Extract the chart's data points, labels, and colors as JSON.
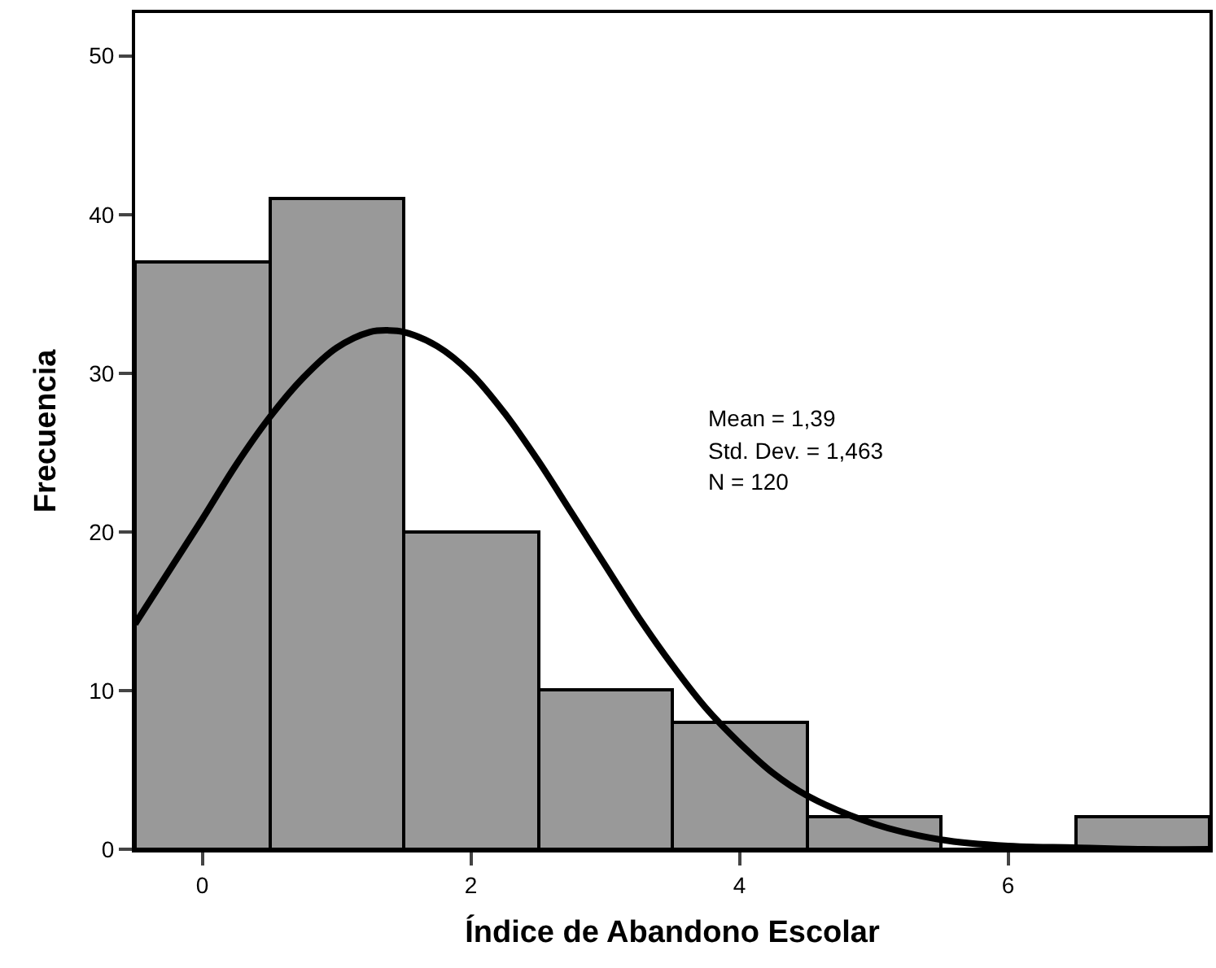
{
  "chart_data": {
    "type": "histogram",
    "xlabel": "Índice de Abandono Escolar",
    "ylabel": "Frecuencia",
    "bins": [
      -0.5,
      0.5,
      1.5,
      2.5,
      3.5,
      4.5,
      5.5,
      6.5,
      7.5
    ],
    "values": [
      37,
      41,
      20,
      10,
      8,
      2,
      0,
      2
    ],
    "color": "#999999",
    "series": [
      {
        "type": "line",
        "color": "#000000",
        "x": [
          -0.5,
          0,
          0.25,
          0.5,
          0.75,
          1,
          1.25,
          1.39,
          1.5,
          1.75,
          2,
          2.25,
          2.5,
          2.75,
          3,
          3.25,
          3.5,
          3.75,
          4,
          4.25,
          4.5,
          5,
          5.5,
          6,
          6.5,
          7,
          7.5
        ],
        "values": [
          14.2,
          20.8,
          24.2,
          27.2,
          29.7,
          31.6,
          32.6,
          32.7,
          32.6,
          31.7,
          30.0,
          27.5,
          24.5,
          21.2,
          17.9,
          14.6,
          11.6,
          8.9,
          6.7,
          4.8,
          3.4,
          1.6,
          0.6,
          0.2,
          0.1,
          0.0,
          0.0
        ]
      }
    ],
    "xlim": [
      -0.5,
      7.5
    ],
    "xticks": [
      0,
      2,
      4,
      6
    ],
    "ylim": [
      0,
      52.7
    ],
    "yticks": [
      0,
      10,
      20,
      30,
      40,
      50
    ],
    "annotations": [
      "Mean = 1,39",
      "Std. Dev. = 1,463",
      "N = 120"
    ]
  }
}
